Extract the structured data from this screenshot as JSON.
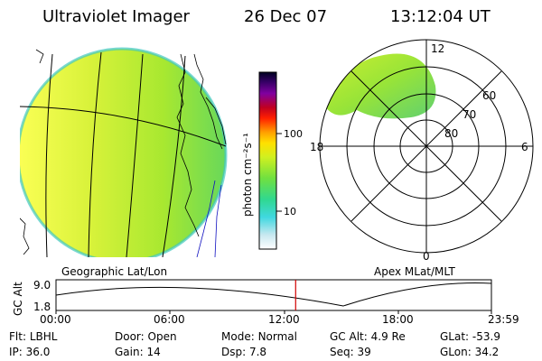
{
  "header": {
    "instrument": "Ultraviolet Imager",
    "date": "26 Dec 07",
    "time": "13:12:04 UT"
  },
  "left_panel": {
    "label": "Geographic Lat/Lon"
  },
  "right_panel": {
    "label": "Apex MLat/MLT",
    "lat_labels": [
      "60",
      "70",
      "80"
    ],
    "mlt_labels": {
      "top": "12",
      "left": "18",
      "right": "6",
      "bottom": "0"
    }
  },
  "colorbar": {
    "unit_label": "photon cm⁻²s⁻¹",
    "ticks": [
      "100",
      "10"
    ]
  },
  "altitude_plot": {
    "y_label": "GC Alt",
    "y_ticks": [
      "9.0",
      "1.8"
    ],
    "x_ticks": [
      "00:00",
      "06:00",
      "12:00",
      "18:00",
      "23:59"
    ],
    "current_time_marker_hours": 13.2,
    "marker_color": "#d00000"
  },
  "status": {
    "row1": [
      {
        "key": "Flt:",
        "value": "LBHL"
      },
      {
        "key": "Door:",
        "value": "Open"
      },
      {
        "key": "Mode:",
        "value": "Normal"
      },
      {
        "key": "GC Alt:",
        "value": "4.9 Re"
      },
      {
        "key": "GLat:",
        "value": "-53.9"
      }
    ],
    "row2": [
      {
        "key": "IP:",
        "value": "36.0"
      },
      {
        "key": "Gain:",
        "value": "14"
      },
      {
        "key": "Dsp:",
        "value": "7.8"
      },
      {
        "key": "Seq:",
        "value": "39"
      },
      {
        "key": "GLon:",
        "value": "34.2"
      }
    ]
  }
}
